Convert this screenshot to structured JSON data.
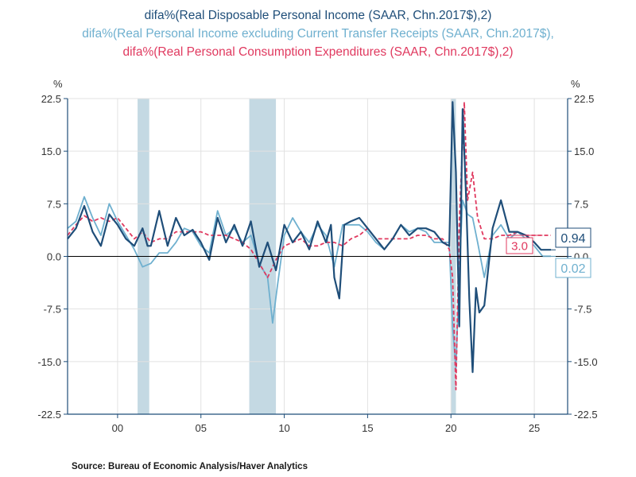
{
  "chart_data": {
    "type": "line",
    "titles": [
      {
        "text": "difa%(Real Disposable Personal Income (SAAR, Chn.2017$),2)",
        "color": "#1f4e79"
      },
      {
        "text": "difa%(Real Personal Income excluding Current Transfer Receipts (SAAR, Chn.2017$),",
        "color": "#6fb0cf"
      },
      {
        "text": "difa%(Real Personal Consumption Expenditures (SAAR, Chn.2017$),2)",
        "color": "#e0395f"
      }
    ],
    "ylabel_left": "%",
    "ylabel_right": "%",
    "ylim": [
      -22.5,
      22.5
    ],
    "xlim": [
      1997,
      2027
    ],
    "yticks": [
      22.5,
      15.0,
      7.5,
      0.0,
      -7.5,
      -15.0,
      -22.5
    ],
    "ytick_labels": [
      "22.5",
      "15.0",
      "7.5",
      "0.0",
      "-7.5",
      "-15.0",
      "-22.5"
    ],
    "xticks": [
      2000,
      2005,
      2010,
      2015,
      2020,
      2025
    ],
    "xtick_labels": [
      "00",
      "05",
      "10",
      "15",
      "20",
      "25"
    ],
    "recessions": [
      [
        2001.2,
        2001.9
      ],
      [
        2007.9,
        2009.5
      ],
      [
        2020.0,
        2020.3
      ]
    ],
    "series": [
      {
        "name": "Real Disposable Personal Income",
        "color": "#1f4e79",
        "style": "solid",
        "end_label": "0.94",
        "x": [
          1997.0,
          1997.5,
          1998.0,
          1998.5,
          1999.0,
          1999.5,
          2000.0,
          2000.5,
          2001.0,
          2001.5,
          2001.8,
          2002.0,
          2002.5,
          2003.0,
          2003.5,
          2004.0,
          2004.5,
          2005.0,
          2005.5,
          2006.0,
          2006.5,
          2007.0,
          2007.5,
          2008.0,
          2008.5,
          2009.0,
          2009.5,
          2010.0,
          2010.5,
          2011.0,
          2011.5,
          2012.0,
          2012.5,
          2012.8,
          2013.0,
          2013.3,
          2013.6,
          2014.0,
          2014.5,
          2015.0,
          2015.5,
          2016.0,
          2016.5,
          2017.0,
          2017.5,
          2018.0,
          2018.5,
          2019.0,
          2019.5,
          2019.9,
          2020.1,
          2020.3,
          2020.5,
          2020.7,
          2020.9,
          2021.1,
          2021.3,
          2021.5,
          2021.7,
          2022.0,
          2022.5,
          2023.0,
          2023.5,
          2024.0,
          2024.5,
          2025.0,
          2025.4,
          2026.0
        ],
        "y": [
          2.5,
          4.0,
          7.2,
          3.5,
          1.5,
          6.0,
          4.5,
          2.5,
          1.5,
          4.0,
          1.5,
          1.5,
          6.5,
          1.5,
          5.5,
          3.0,
          3.8,
          2.0,
          -0.5,
          5.5,
          2.0,
          4.5,
          1.5,
          5.0,
          -1.5,
          2.0,
          -2.0,
          4.5,
          2.0,
          3.5,
          1.0,
          5.0,
          2.0,
          4.5,
          -3.0,
          -6.0,
          4.5,
          5.0,
          5.5,
          4.0,
          2.5,
          1.0,
          2.5,
          4.5,
          3.0,
          4.0,
          4.0,
          3.5,
          2.0,
          1.5,
          22.0,
          12.0,
          -10.0,
          21.0,
          9.0,
          -6.0,
          -16.5,
          -4.5,
          -8.0,
          -7.0,
          4.0,
          8.0,
          3.5,
          3.5,
          3.0,
          2.0,
          0.94,
          0.94
        ]
      },
      {
        "name": "Real Personal Income excluding Current Transfer Receipts",
        "color": "#6fb0cf",
        "style": "solid",
        "end_label": "0.02",
        "x": [
          1997.0,
          1997.5,
          1998.0,
          1998.5,
          1999.0,
          1999.5,
          2000.0,
          2000.5,
          2001.0,
          2001.5,
          2002.0,
          2002.5,
          2003.0,
          2003.5,
          2004.0,
          2004.5,
          2005.0,
          2005.5,
          2006.0,
          2006.5,
          2007.0,
          2007.5,
          2008.0,
          2008.5,
          2009.0,
          2009.3,
          2009.6,
          2010.0,
          2010.5,
          2011.0,
          2011.5,
          2012.0,
          2012.5,
          2013.0,
          2013.5,
          2014.0,
          2014.5,
          2015.0,
          2015.5,
          2016.0,
          2016.5,
          2017.0,
          2017.5,
          2018.0,
          2018.5,
          2019.0,
          2019.5,
          2019.9,
          2020.1,
          2020.3,
          2020.5,
          2020.7,
          2021.0,
          2021.3,
          2021.6,
          2022.0,
          2022.5,
          2023.0,
          2023.5,
          2024.0,
          2024.5,
          2025.0,
          2025.5,
          2026.0
        ],
        "y": [
          4.0,
          5.0,
          8.5,
          5.5,
          3.0,
          7.5,
          5.0,
          3.0,
          1.0,
          -1.5,
          -1.0,
          0.5,
          0.5,
          2.0,
          4.0,
          3.5,
          1.5,
          0.5,
          6.5,
          3.0,
          4.0,
          2.0,
          3.0,
          -1.0,
          -3.0,
          -9.5,
          -4.0,
          3.0,
          5.5,
          3.5,
          2.0,
          4.5,
          3.0,
          -1.5,
          4.5,
          4.5,
          4.5,
          3.5,
          2.0,
          1.0,
          2.5,
          4.5,
          3.5,
          4.0,
          3.5,
          2.0,
          2.0,
          2.0,
          -10.0,
          -16.0,
          -2.0,
          8.0,
          6.0,
          5.5,
          2.0,
          -3.0,
          3.0,
          4.5,
          2.5,
          3.5,
          2.5,
          1.5,
          0.02,
          0.02
        ]
      },
      {
        "name": "Real Personal Consumption Expenditures",
        "color": "#e0395f",
        "style": "dashed",
        "end_label": "3.0",
        "x": [
          1997.0,
          1997.5,
          1998.0,
          1998.5,
          1999.0,
          1999.5,
          2000.0,
          2000.5,
          2001.0,
          2001.5,
          2002.0,
          2002.5,
          2003.0,
          2003.5,
          2004.0,
          2004.5,
          2005.0,
          2005.5,
          2006.0,
          2006.5,
          2007.0,
          2007.5,
          2008.0,
          2008.5,
          2009.0,
          2009.5,
          2010.0,
          2010.5,
          2011.0,
          2011.5,
          2012.0,
          2012.5,
          2013.0,
          2013.5,
          2014.0,
          2014.5,
          2015.0,
          2015.5,
          2016.0,
          2016.5,
          2017.0,
          2017.5,
          2018.0,
          2018.5,
          2019.0,
          2019.5,
          2019.9,
          2020.1,
          2020.3,
          2020.5,
          2020.8,
          2021.0,
          2021.3,
          2021.6,
          2022.0,
          2022.5,
          2023.0,
          2023.5,
          2024.0,
          2024.5,
          2025.0,
          2025.5,
          2026.0
        ],
        "y": [
          3.0,
          4.5,
          5.8,
          5.0,
          5.5,
          5.0,
          5.5,
          4.0,
          2.5,
          3.5,
          2.0,
          2.5,
          2.5,
          3.5,
          3.5,
          3.5,
          3.5,
          3.0,
          3.0,
          3.0,
          2.5,
          2.0,
          1.0,
          -1.0,
          -3.0,
          -0.5,
          1.5,
          2.0,
          2.5,
          1.5,
          1.5,
          2.0,
          2.0,
          1.5,
          2.5,
          3.0,
          4.0,
          2.5,
          2.5,
          2.5,
          2.5,
          2.5,
          3.0,
          3.0,
          2.5,
          2.5,
          1.0,
          -3.0,
          -19.0,
          5.0,
          22.0,
          8.0,
          12.0,
          5.5,
          2.5,
          2.5,
          3.0,
          3.0,
          3.5,
          3.0,
          3.0,
          3.0,
          3.0
        ]
      }
    ],
    "source": "Source:  Bureau of Economic Analysis/Haver Analytics"
  }
}
